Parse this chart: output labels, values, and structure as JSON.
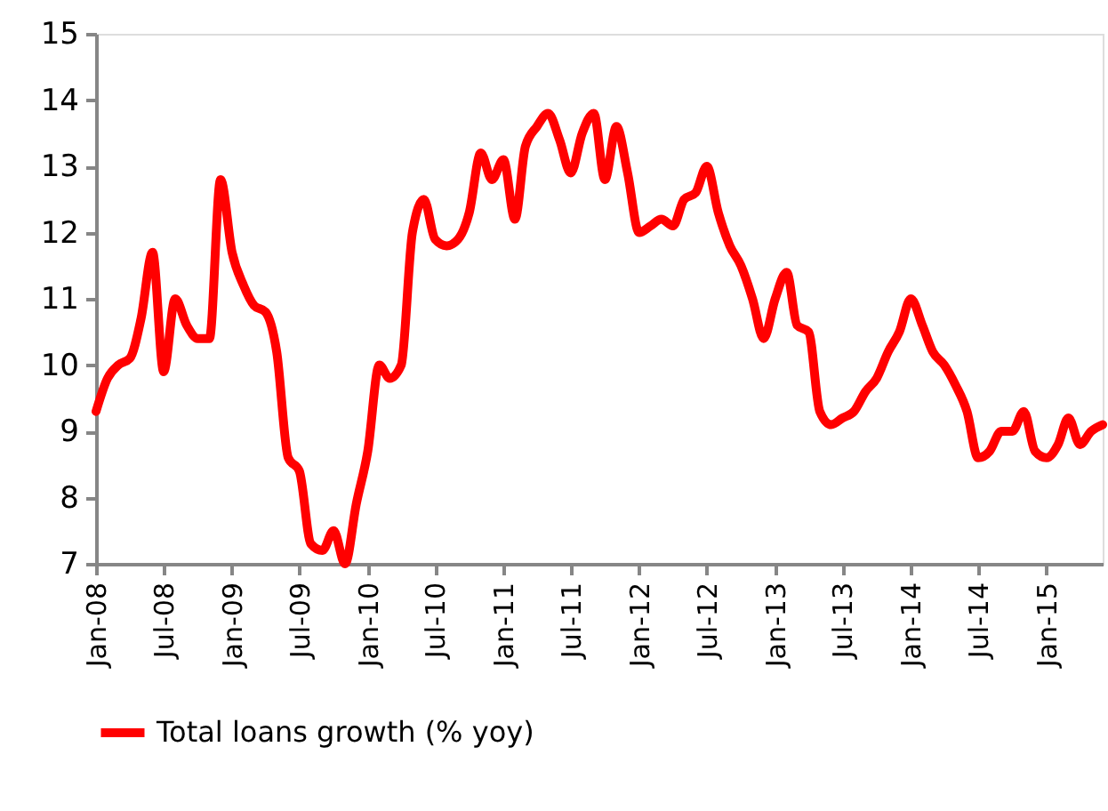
{
  "chart_data": {
    "type": "line",
    "x": [
      "2008-01",
      "2008-02",
      "2008-03",
      "2008-04",
      "2008-05",
      "2008-06",
      "2008-07",
      "2008-08",
      "2008-09",
      "2008-10",
      "2008-11",
      "2008-12",
      "2009-01",
      "2009-02",
      "2009-03",
      "2009-04",
      "2009-05",
      "2009-06",
      "2009-07",
      "2009-08",
      "2009-09",
      "2009-10",
      "2009-11",
      "2009-12",
      "2010-01",
      "2010-02",
      "2010-03",
      "2010-04",
      "2010-05",
      "2010-06",
      "2010-07",
      "2010-08",
      "2010-09",
      "2010-10",
      "2010-11",
      "2010-12",
      "2011-01",
      "2011-02",
      "2011-03",
      "2011-04",
      "2011-05",
      "2011-06",
      "2011-07",
      "2011-08",
      "2011-09",
      "2011-10",
      "2011-11",
      "2011-12",
      "2012-01",
      "2012-02",
      "2012-03",
      "2012-04",
      "2012-05",
      "2012-06",
      "2012-07",
      "2012-08",
      "2012-09",
      "2012-10",
      "2012-11",
      "2012-12",
      "2013-01",
      "2013-02",
      "2013-03",
      "2013-04",
      "2013-05",
      "2013-06",
      "2013-07",
      "2013-08",
      "2013-09",
      "2013-10",
      "2013-11",
      "2013-12",
      "2014-01",
      "2014-02",
      "2014-03",
      "2014-04",
      "2014-05",
      "2014-06",
      "2014-07",
      "2014-08",
      "2014-09",
      "2014-10",
      "2014-11",
      "2014-12",
      "2015-01",
      "2015-02",
      "2015-03",
      "2015-04",
      "2015-05",
      "2015-06"
    ],
    "series": [
      {
        "name": "Total loans growth (% yoy)",
        "color": "#ff0000",
        "values": [
          9.3,
          9.8,
          10.0,
          10.1,
          10.7,
          11.7,
          9.9,
          11.0,
          10.6,
          10.4,
          10.4,
          12.8,
          11.7,
          11.2,
          10.9,
          10.8,
          10.2,
          8.6,
          8.4,
          7.3,
          7.2,
          7.5,
          7.0,
          7.9,
          8.7,
          10.0,
          9.8,
          10.0,
          12.0,
          12.5,
          11.9,
          11.8,
          11.9,
          12.3,
          13.2,
          12.8,
          13.1,
          12.2,
          13.3,
          13.6,
          13.8,
          13.4,
          12.9,
          13.5,
          13.8,
          12.8,
          13.6,
          12.9,
          12.0,
          12.1,
          12.2,
          12.1,
          12.5,
          12.6,
          13.0,
          12.3,
          11.8,
          11.5,
          11.0,
          10.4,
          11.0,
          11.4,
          10.6,
          10.5,
          9.3,
          9.1,
          9.2,
          9.3,
          9.6,
          9.8,
          10.2,
          10.5,
          11.0,
          10.6,
          10.2,
          10.0,
          9.7,
          9.3,
          8.6,
          8.7,
          9.0,
          9.0,
          9.3,
          8.7,
          8.6,
          8.8,
          9.2,
          8.8,
          9.0,
          9.1
        ]
      }
    ],
    "xlim": [
      "2008-01",
      "2015-06"
    ],
    "xticks": [
      {
        "value": "2008-01",
        "label": "Jan-08"
      },
      {
        "value": "2008-07",
        "label": "Jul-08"
      },
      {
        "value": "2009-01",
        "label": "Jan-09"
      },
      {
        "value": "2009-07",
        "label": "Jul-09"
      },
      {
        "value": "2010-01",
        "label": "Jan-10"
      },
      {
        "value": "2010-07",
        "label": "Jul-10"
      },
      {
        "value": "2011-01",
        "label": "Jan-11"
      },
      {
        "value": "2011-07",
        "label": "Jul-11"
      },
      {
        "value": "2012-01",
        "label": "Jan-12"
      },
      {
        "value": "2012-07",
        "label": "Jul-12"
      },
      {
        "value": "2013-01",
        "label": "Jan-13"
      },
      {
        "value": "2013-07",
        "label": "Jul-13"
      },
      {
        "value": "2014-01",
        "label": "Jan-14"
      },
      {
        "value": "2014-07",
        "label": "Jul-14"
      },
      {
        "value": "2015-01",
        "label": "Jan-15"
      }
    ],
    "ylim": [
      7,
      15
    ],
    "yticks": [
      7,
      8,
      9,
      10,
      11,
      12,
      13,
      14,
      15
    ],
    "grid": false,
    "legend": "bottom",
    "marker": "none",
    "line_style": "solid"
  }
}
